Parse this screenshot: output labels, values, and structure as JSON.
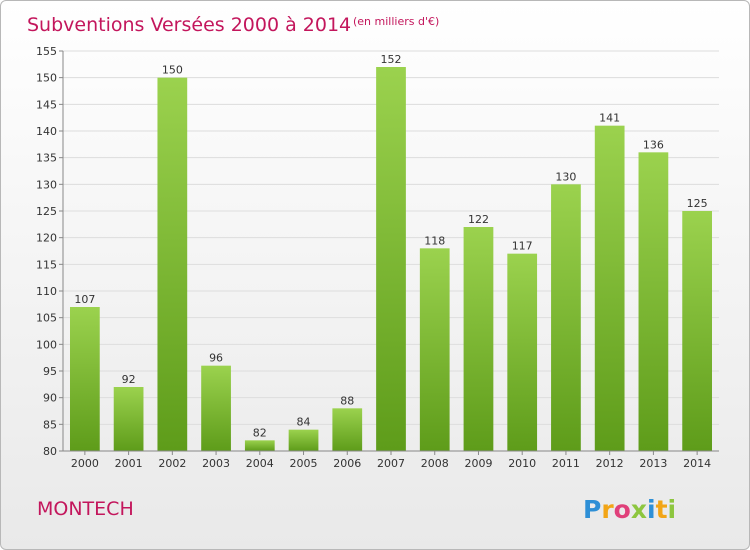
{
  "chart_data": {
    "type": "bar",
    "title": "Subventions Versées 2000 à 2014",
    "subtitle": "(en milliers d'€)",
    "categories": [
      "2000",
      "2001",
      "2002",
      "2003",
      "2004",
      "2005",
      "2006",
      "2007",
      "2008",
      "2009",
      "2010",
      "2011",
      "2012",
      "2013",
      "2014"
    ],
    "values": [
      107,
      92,
      150,
      96,
      82,
      84,
      88,
      152,
      118,
      122,
      117,
      130,
      141,
      136,
      125
    ],
    "ylim": [
      80,
      155
    ],
    "yticks": [
      80,
      85,
      90,
      95,
      100,
      105,
      110,
      115,
      120,
      125,
      130,
      135,
      140,
      145,
      150,
      155
    ],
    "grid": true,
    "bar_color_top": "#9bd24e",
    "bar_color_bottom": "#5e9c1a"
  },
  "footer": {
    "commune": "MONTECH",
    "logo_letters": [
      "P",
      "r",
      "o",
      "x",
      "i",
      "t",
      "i"
    ],
    "logo_colors": [
      "#2e8fd6",
      "#f2a516",
      "#e0407a",
      "#8dc63f",
      "#2e8fd6",
      "#f2a516",
      "#8dc63f"
    ]
  },
  "colors": {
    "accent": "#c3165c",
    "grid": "#dddddd",
    "axis": "#888888"
  }
}
